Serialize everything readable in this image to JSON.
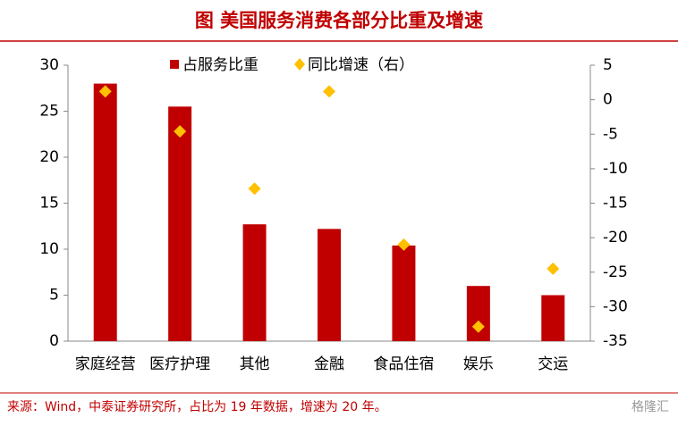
{
  "chart_data": {
    "type": "bar_line",
    "title": "图  美国服务消费各部分比重及增速",
    "categories": [
      "家庭经营",
      "医疗护理",
      "其他",
      "金融",
      "食品住宿",
      "娱乐",
      "交运"
    ],
    "series": [
      {
        "name": "占服务比重",
        "color": "#c00000",
        "type": "bar",
        "values": [
          28,
          25.5,
          12.7,
          12.2,
          10.4,
          6,
          5
        ]
      },
      {
        "name": "同比增速（右）",
        "color": "#ffc000",
        "type": "scatter",
        "axis": "y2",
        "values": [
          1.2,
          -4.6,
          -12.9,
          1.2,
          -21,
          -32.9,
          -24.5
        ]
      }
    ],
    "ylim": [
      0,
      30
    ],
    "yticks": [
      0,
      5,
      10,
      15,
      20,
      25,
      30
    ],
    "y2lim": [
      -35,
      5
    ],
    "y2ticks": [
      -35,
      -30,
      -25,
      -20,
      -15,
      -10,
      -5,
      0,
      5
    ],
    "source": "来源：Wind，中泰证券研究所，占比为 19 年数据，增速为 20 年。",
    "watermark": "格隆汇"
  }
}
